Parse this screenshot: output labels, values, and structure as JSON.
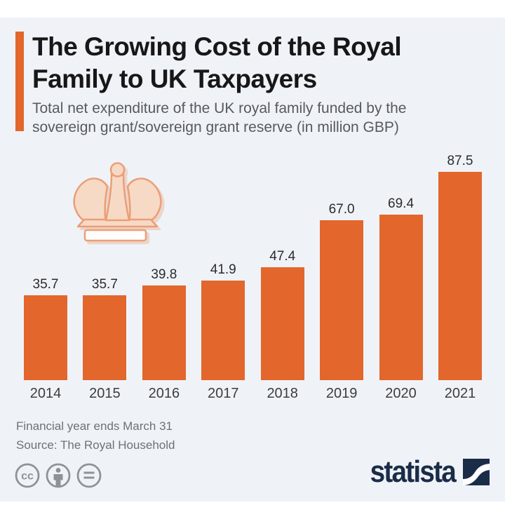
{
  "page": {
    "background": "#ffffff",
    "panel_background": "#eff3f8"
  },
  "header": {
    "title_lines": [
      "The Growing Cost of the Royal",
      "Family to UK Taxpayers"
    ],
    "subtitle_lines": [
      "Total net expenditure of the UK royal family funded by the",
      "sovereign grant/sovereign grant reserve (in million GBP)"
    ]
  },
  "chart_data": {
    "type": "bar",
    "title": "Total net expenditure of the UK royal family funded by the sovereign grant/sovereign grant reserve (in million GBP)",
    "categories": [
      "2014",
      "2015",
      "2016",
      "2017",
      "2018",
      "2019",
      "2020",
      "2021"
    ],
    "values": [
      35.7,
      35.7,
      39.8,
      41.9,
      47.4,
      67.0,
      69.4,
      87.5
    ],
    "value_labels": [
      "35.7",
      "35.7",
      "39.8",
      "41.9",
      "47.4",
      "67.0",
      "69.4",
      "87.5"
    ],
    "unit": "million GBP",
    "bar_color": "#e3662c",
    "xlabel": "",
    "ylabel": "",
    "grid": false,
    "legend": false
  },
  "decorations": {
    "crown_icon": "crown"
  },
  "footer": {
    "note": "Financial year ends March 31",
    "source": "Source: The Royal Household"
  },
  "branding": {
    "logo_text": "statista",
    "license_icons": [
      {
        "name": "cc-icon",
        "label": "cc"
      },
      {
        "name": "attribution-icon",
        "label": "person-glyph"
      },
      {
        "name": "no-derivatives-icon",
        "label": "equals-glyph"
      }
    ]
  },
  "colors": {
    "accent": "#e3662c",
    "panel": "#eff3f8",
    "title": "#171717",
    "subtitle": "#58595b",
    "value-label": "#2b2b2b",
    "year-label": "#3c3c3c",
    "footer-text": "#6f7173",
    "license-gray": "#8f9295",
    "brand-navy": "#1b2c48",
    "crown-fill": "#f7dac6",
    "crown-stroke": "#eb9e76"
  }
}
